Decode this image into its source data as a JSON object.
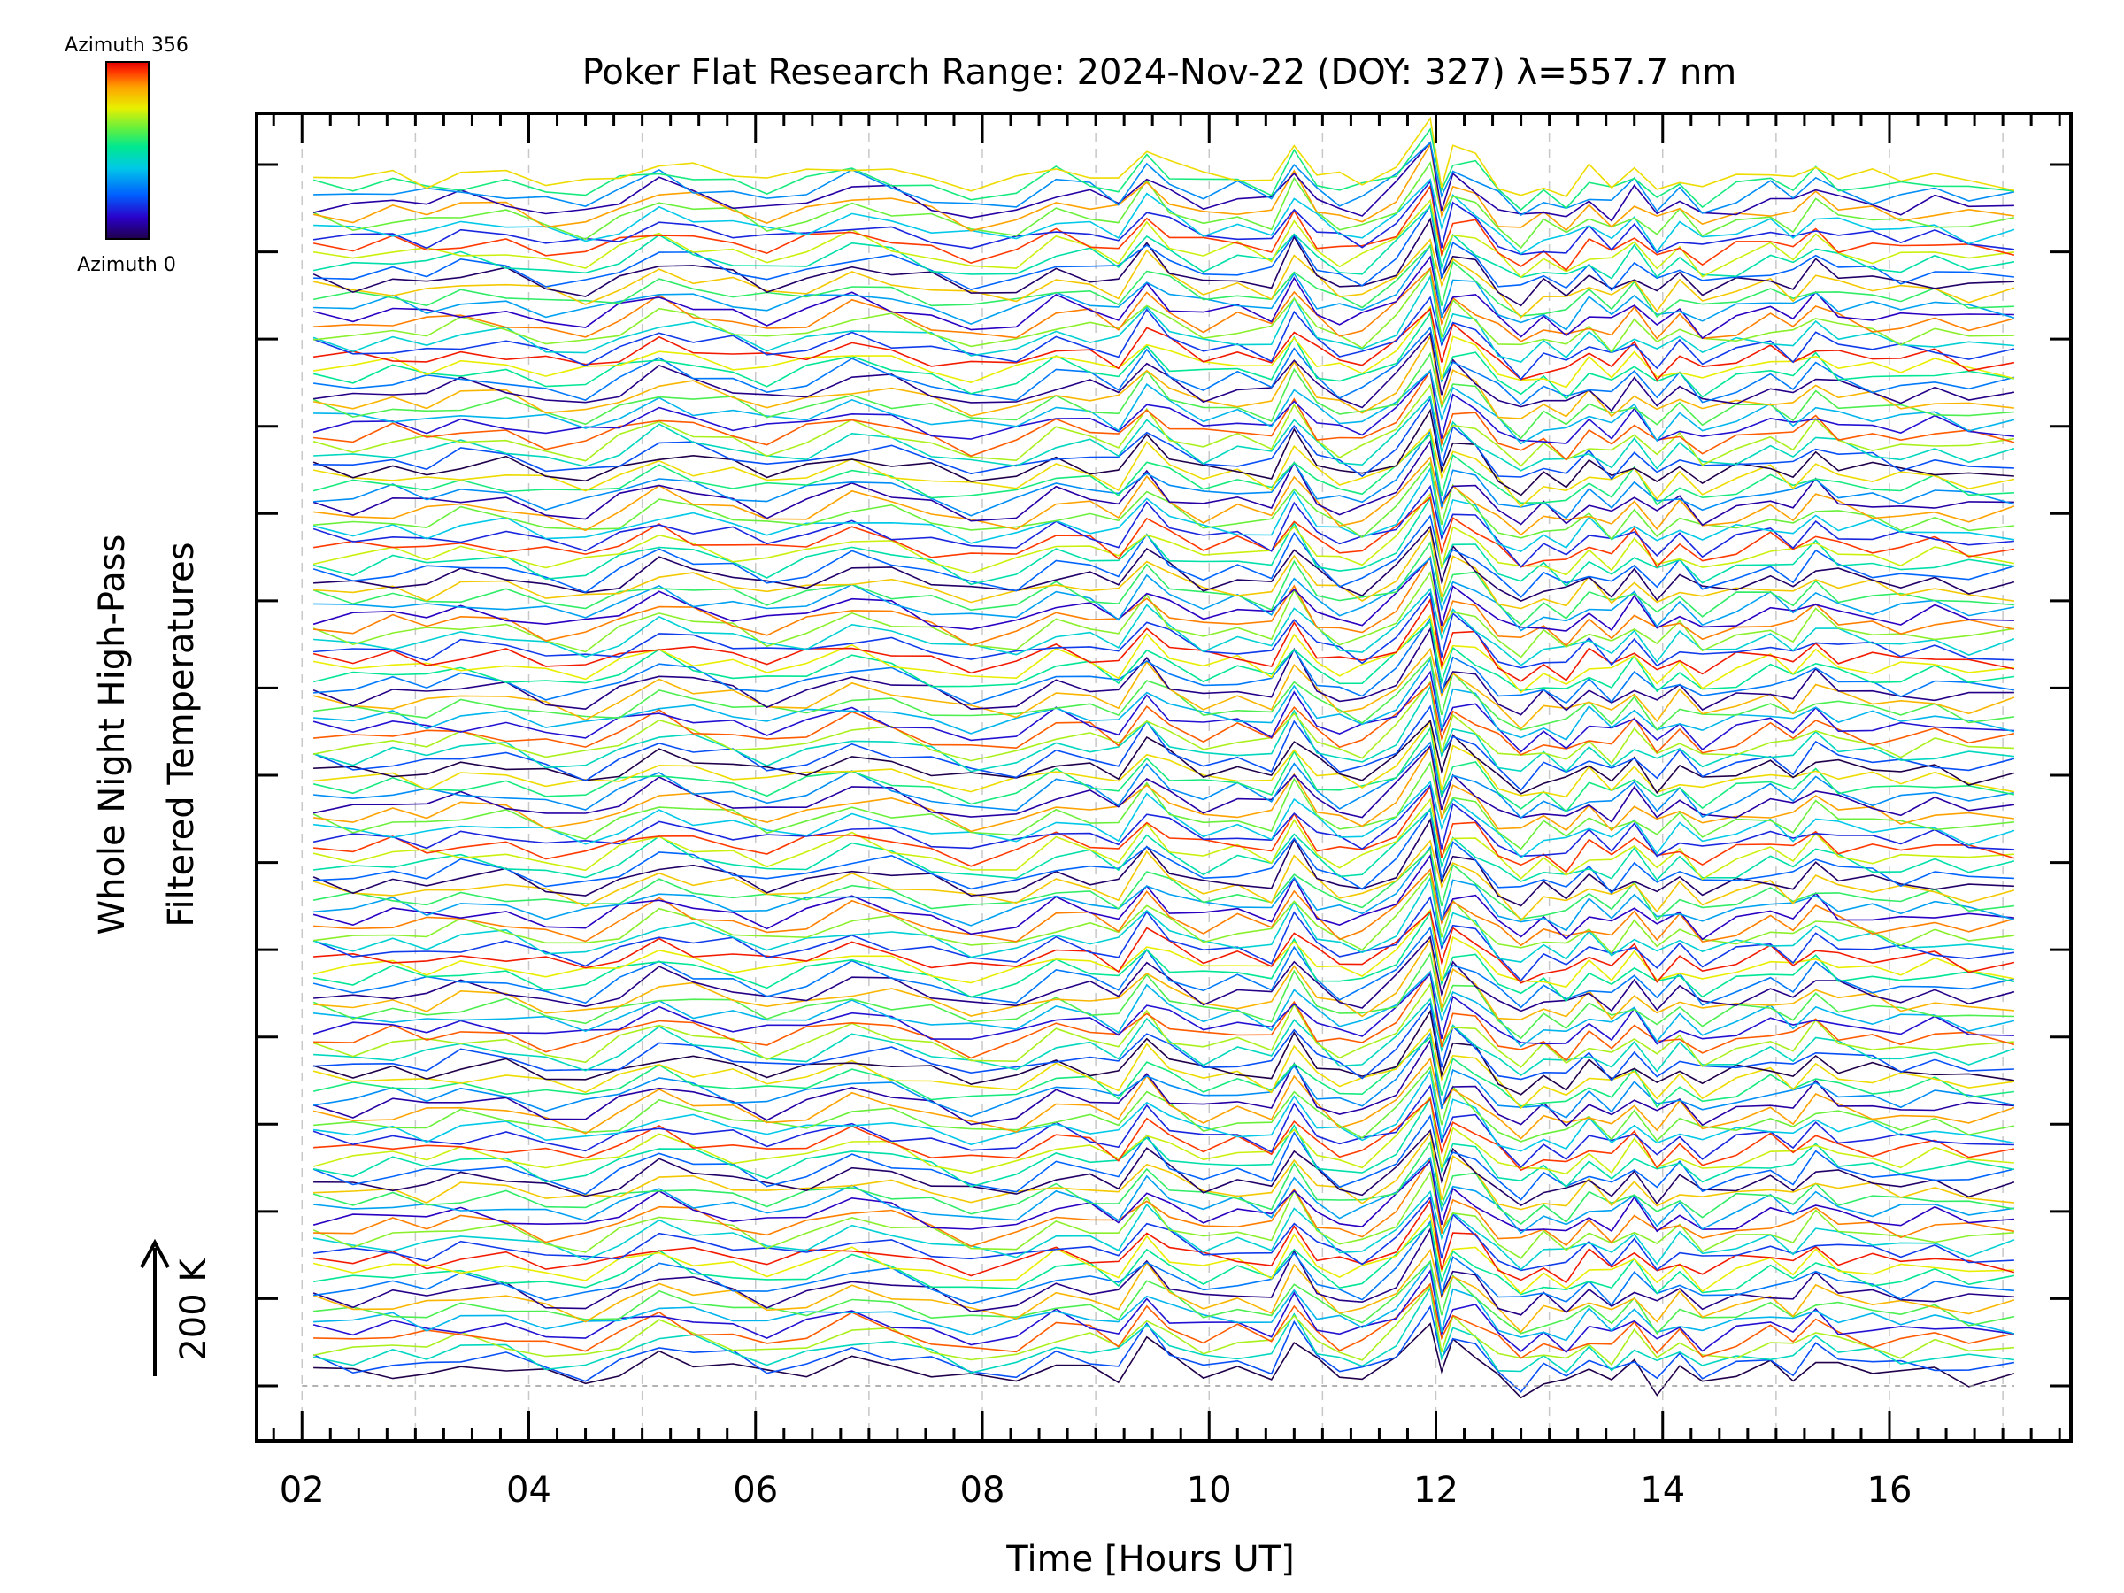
{
  "chart_data": {
    "type": "line",
    "title": "Poker Flat Research Range: 2024-Nov-22 (DOY: 327) λ=557.7 nm",
    "xlabel": "Time [Hours UT]",
    "ylabel_line1": "Whole Night High-Pass",
    "ylabel_line2": "Filtered Temperatures",
    "xlim": [
      1.6,
      17.6
    ],
    "x_ticks": [
      2,
      4,
      6,
      8,
      10,
      12,
      14,
      16
    ],
    "x_tick_labels": [
      "02",
      "04",
      "06",
      "08",
      "10",
      "12",
      "14",
      "16"
    ],
    "grid": "vertical dashed at every hour",
    "colorbar": {
      "top_label": "Azimuth 356",
      "bottom_label": "Azimuth 0",
      "colormap": "rainbow",
      "colors": [
        "#20004a",
        "#2a00c8",
        "#0060ff",
        "#00c8e8",
        "#00e890",
        "#60f040",
        "#e8f000",
        "#ffa000",
        "#ff3000",
        "#e00000"
      ]
    },
    "scale_bar": {
      "label": "200 K"
    },
    "series_count": 140,
    "time": [
      2.1,
      2.45,
      2.8,
      3.1,
      3.4,
      3.8,
      4.15,
      4.5,
      4.8,
      5.15,
      5.45,
      5.8,
      6.1,
      6.45,
      6.85,
      7.2,
      7.55,
      7.9,
      8.3,
      8.65,
      8.95,
      9.2,
      9.45,
      9.65,
      9.95,
      10.25,
      10.55,
      10.75,
      10.95,
      11.15,
      11.35,
      11.65,
      11.95,
      12.05,
      12.15,
      12.35,
      12.55,
      12.75,
      12.95,
      13.15,
      13.35,
      13.55,
      13.75,
      13.95,
      14.15,
      14.35,
      14.65,
      14.95,
      15.15,
      15.35,
      15.55,
      15.85,
      16.1,
      16.4,
      16.7,
      17.1
    ],
    "base_shape": [
      0.0,
      -0.1,
      0.05,
      -0.05,
      0.15,
      0.1,
      -0.2,
      -0.3,
      0.05,
      0.55,
      0.3,
      0.1,
      -0.15,
      0.05,
      0.45,
      0.25,
      -0.05,
      -0.35,
      -0.25,
      0.3,
      0.15,
      -0.1,
      0.9,
      0.35,
      -0.05,
      0.1,
      -0.1,
      1.0,
      0.15,
      -0.15,
      -0.2,
      0.4,
      1.7,
      -0.1,
      0.8,
      0.5,
      -0.2,
      -0.6,
      -0.2,
      -0.45,
      0.1,
      -0.3,
      0.3,
      -0.4,
      0.1,
      -0.4,
      -0.1,
      0.15,
      -0.1,
      0.45,
      0.1,
      0.0,
      -0.1,
      0.05,
      -0.15,
      -0.1
    ]
  }
}
